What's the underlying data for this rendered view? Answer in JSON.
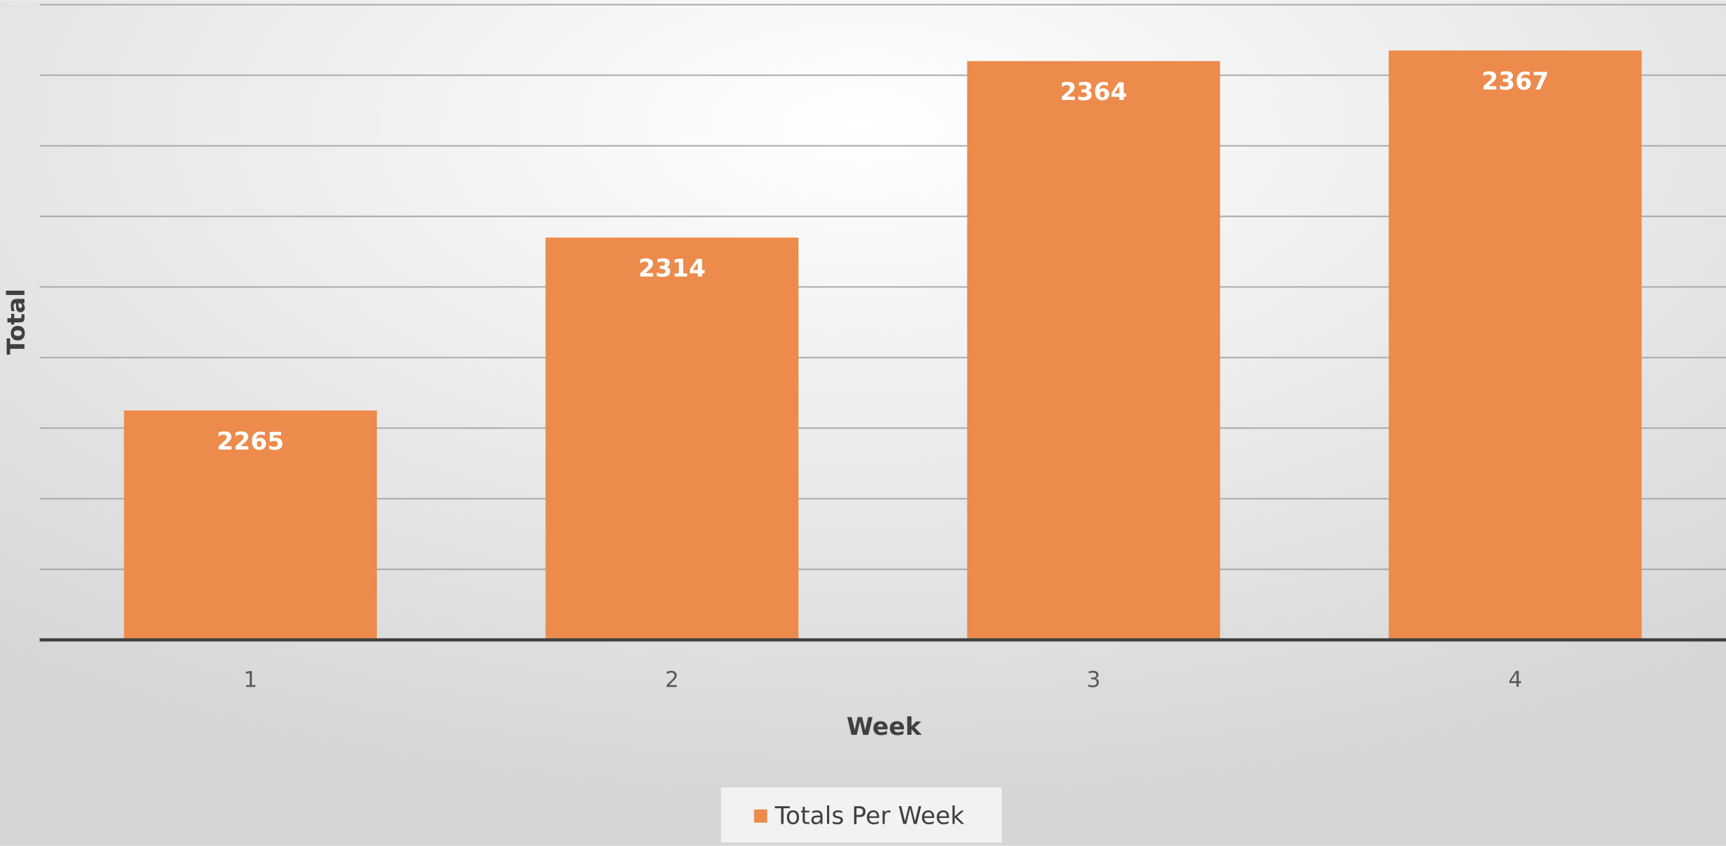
{
  "chart_data": {
    "type": "bar",
    "x_label": "Week",
    "y_label": "Total",
    "categories": [
      "1",
      "2",
      "3",
      "4"
    ],
    "series": [
      {
        "name": "Totals Per Week",
        "color": "#ed8b4c",
        "values": [
          2265,
          2314,
          2364,
          2367
        ]
      }
    ],
    "ylim": [
      2200,
      2380
    ],
    "yticks": [
      2200,
      2220,
      2240,
      2260,
      2280,
      2300,
      2320,
      2340,
      2360,
      2380
    ],
    "grid": true,
    "legend": "bottom"
  }
}
